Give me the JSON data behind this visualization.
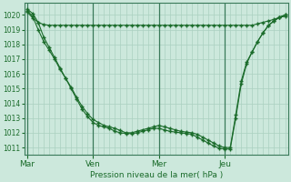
{
  "bg_color": "#cce8dc",
  "grid_color": "#aad0c0",
  "line_color": "#1a6b2a",
  "marker_color": "#1a6b2a",
  "xlabel": "Pression niveau de la mer( hPa )",
  "xlabel_color": "#1a6b2a",
  "tick_color": "#1a6b2a",
  "ylim": [
    1010.5,
    1020.8
  ],
  "yticks": [
    1011,
    1012,
    1013,
    1014,
    1015,
    1016,
    1017,
    1018,
    1019,
    1020
  ],
  "xtick_labels": [
    "Mar",
    "Ven",
    "Mer",
    "Jeu"
  ],
  "xtick_positions": [
    0,
    24,
    48,
    72
  ],
  "vline_positions": [
    0,
    24,
    48,
    72
  ],
  "total_points": 96,
  "series1_x": [
    0,
    2,
    4,
    6,
    8,
    10,
    12,
    14,
    16,
    18,
    20,
    22,
    24,
    26,
    28,
    30,
    32,
    34,
    36,
    38,
    40,
    42,
    44,
    46,
    48,
    50,
    52,
    54,
    56,
    58,
    60,
    62,
    64,
    66,
    68,
    70,
    72,
    74,
    76,
    78,
    80,
    82,
    84,
    86,
    88,
    90,
    92,
    94
  ],
  "series1_y": [
    1020.2,
    1019.8,
    1019.5,
    1019.35,
    1019.3,
    1019.3,
    1019.3,
    1019.3,
    1019.3,
    1019.3,
    1019.3,
    1019.3,
    1019.3,
    1019.3,
    1019.3,
    1019.3,
    1019.3,
    1019.3,
    1019.3,
    1019.3,
    1019.3,
    1019.3,
    1019.3,
    1019.3,
    1019.3,
    1019.3,
    1019.3,
    1019.3,
    1019.3,
    1019.3,
    1019.3,
    1019.3,
    1019.3,
    1019.3,
    1019.3,
    1019.3,
    1019.3,
    1019.3,
    1019.3,
    1019.3,
    1019.3,
    1019.3,
    1019.4,
    1019.5,
    1019.6,
    1019.7,
    1019.85,
    1019.9
  ],
  "series2_x": [
    0,
    2,
    4,
    6,
    8,
    10,
    12,
    14,
    16,
    18,
    20,
    22,
    24,
    26,
    28,
    30,
    32,
    34,
    36,
    38,
    40,
    42,
    44,
    46,
    48,
    50,
    52,
    54,
    56,
    58,
    60,
    62,
    64,
    66,
    68,
    70,
    72,
    74,
    76,
    78,
    80,
    82,
    84,
    86,
    88,
    90,
    92,
    94
  ],
  "series2_y": [
    1020.3,
    1019.9,
    1019.0,
    1018.2,
    1017.6,
    1017.0,
    1016.3,
    1015.7,
    1015.1,
    1014.4,
    1013.8,
    1013.3,
    1012.9,
    1012.7,
    1012.5,
    1012.4,
    1012.3,
    1012.15,
    1012.0,
    1012.0,
    1012.1,
    1012.2,
    1012.3,
    1012.4,
    1012.5,
    1012.4,
    1012.3,
    1012.2,
    1012.1,
    1012.05,
    1012.0,
    1011.9,
    1011.7,
    1011.5,
    1011.3,
    1011.1,
    1011.0,
    1011.0,
    1013.2,
    1015.5,
    1016.8,
    1017.5,
    1018.2,
    1018.8,
    1019.3,
    1019.6,
    1019.85,
    1020.0
  ],
  "series3_x": [
    0,
    2,
    4,
    6,
    8,
    10,
    12,
    14,
    16,
    18,
    20,
    22,
    24,
    26,
    28,
    30,
    32,
    34,
    36,
    38,
    40,
    42,
    44,
    46,
    48,
    50,
    52,
    54,
    56,
    58,
    60,
    62,
    64,
    66,
    68,
    70,
    72,
    74,
    76,
    78,
    80,
    82,
    84,
    86,
    88,
    90,
    92,
    94
  ],
  "series3_y": [
    1020.4,
    1020.1,
    1019.5,
    1018.5,
    1017.8,
    1017.1,
    1016.4,
    1015.7,
    1015.0,
    1014.3,
    1013.6,
    1013.1,
    1012.7,
    1012.5,
    1012.4,
    1012.3,
    1012.1,
    1012.0,
    1011.95,
    1011.95,
    1012.0,
    1012.1,
    1012.2,
    1012.3,
    1012.3,
    1012.2,
    1012.1,
    1012.05,
    1012.0,
    1011.95,
    1011.9,
    1011.7,
    1011.5,
    1011.3,
    1011.1,
    1010.95,
    1010.9,
    1010.9,
    1013.0,
    1015.3,
    1016.7,
    1017.5,
    1018.2,
    1018.8,
    1019.3,
    1019.6,
    1019.85,
    1020.0
  ]
}
